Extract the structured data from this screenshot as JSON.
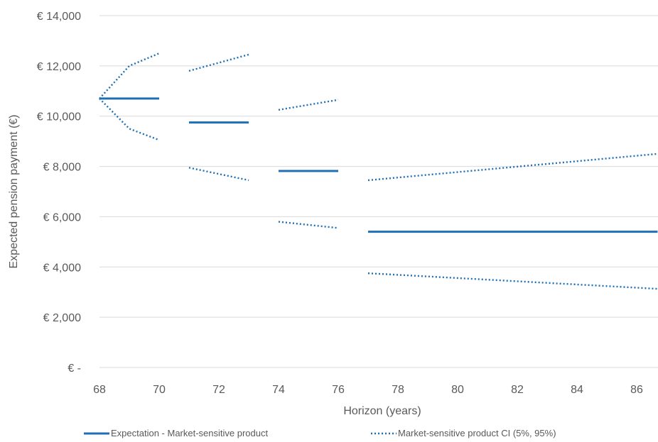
{
  "chart_data": {
    "type": "line",
    "title": "",
    "xlabel": "Horizon (years)",
    "ylabel": "Expected pension payment (€)",
    "xlim": [
      68,
      86.7
    ],
    "ylim": [
      0,
      14000
    ],
    "x_ticks": [
      68,
      70,
      72,
      74,
      76,
      78,
      80,
      82,
      84,
      86
    ],
    "y_ticks": [
      0,
      2000,
      4000,
      6000,
      8000,
      10000,
      12000,
      14000
    ],
    "y_tick_labels": [
      "€ -",
      "€ 2,000",
      "€ 4,000",
      "€ 6,000",
      "€ 8,000",
      "€ 10,000",
      "€ 12,000",
      "€ 14,000"
    ],
    "grid": "horizontal",
    "legend_position": "bottom",
    "color": "#1f6fb4",
    "series": [
      {
        "name": "Expectation - Market-sensitive product",
        "style": "solid",
        "segments": [
          [
            [
              68,
              10700
            ],
            [
              70,
              10700
            ]
          ],
          [
            [
              71,
              9750
            ],
            [
              73,
              9750
            ]
          ],
          [
            [
              74,
              7820
            ],
            [
              76,
              7820
            ]
          ],
          [
            [
              77,
              5400
            ],
            [
              86.7,
              5400
            ]
          ]
        ]
      },
      {
        "name": "Market-sensitive product CI (5%, 95%)",
        "style": "dotted",
        "segments": [
          [
            [
              68,
              10700
            ],
            [
              69,
              12000
            ],
            [
              70,
              12500
            ]
          ],
          [
            [
              68,
              10700
            ],
            [
              69,
              9500
            ],
            [
              70,
              9050
            ]
          ],
          [
            [
              71,
              11800
            ],
            [
              73,
              12450
            ]
          ],
          [
            [
              71,
              7950
            ],
            [
              73,
              7450
            ]
          ],
          [
            [
              74,
              10250
            ],
            [
              76,
              10650
            ]
          ],
          [
            [
              74,
              5800
            ],
            [
              76,
              5550
            ]
          ],
          [
            [
              77,
              7450
            ],
            [
              86.7,
              8500
            ]
          ],
          [
            [
              77,
              3750
            ],
            [
              86.7,
              3130
            ]
          ]
        ]
      }
    ]
  }
}
